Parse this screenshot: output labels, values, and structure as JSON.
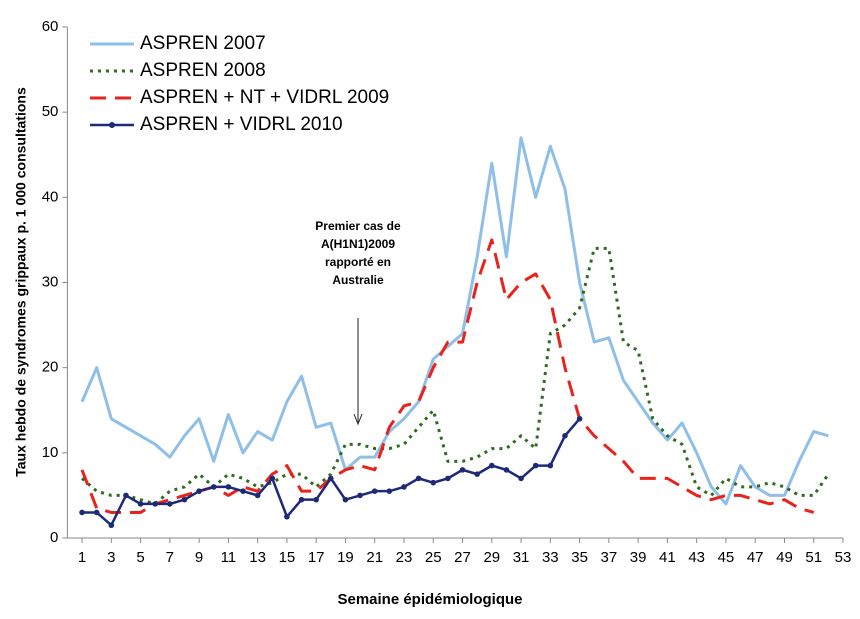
{
  "chart_data": {
    "type": "line",
    "x_label": "Semaine épidémiologique",
    "y_label": "Taux hebdo de syndromes grippaux p. 1 000 consultations",
    "annotation": [
      "Premier cas de",
      "A(H1N1)2009",
      "rapporté en",
      "Australie"
    ],
    "x": [
      1,
      2,
      3,
      4,
      5,
      6,
      7,
      8,
      9,
      10,
      11,
      12,
      13,
      14,
      15,
      16,
      17,
      18,
      19,
      20,
      21,
      22,
      23,
      24,
      25,
      26,
      27,
      28,
      29,
      30,
      31,
      32,
      33,
      34,
      35,
      36,
      37,
      38,
      39,
      40,
      41,
      42,
      43,
      44,
      45,
      46,
      47,
      48,
      49,
      50,
      51,
      52
    ],
    "xlim": [
      0,
      53
    ],
    "xticks": [
      1,
      3,
      5,
      7,
      9,
      11,
      13,
      15,
      17,
      19,
      21,
      23,
      25,
      27,
      29,
      31,
      33,
      35,
      37,
      39,
      41,
      43,
      45,
      47,
      49,
      51,
      53
    ],
    "ylim": [
      0,
      60
    ],
    "yticks": [
      0,
      10,
      20,
      30,
      40,
      50,
      60
    ],
    "legend": "upper left",
    "series": [
      {
        "name": "ASPREN 2007",
        "color": "#8fbfe8",
        "style": "solid",
        "values": [
          16,
          20,
          14,
          13,
          12,
          11,
          9.5,
          12,
          14,
          9,
          14.5,
          10,
          12.5,
          11.5,
          16,
          19,
          13,
          13.5,
          8,
          9.5,
          9.5,
          12.5,
          14,
          16,
          21,
          22.5,
          24,
          33,
          44,
          33,
          47,
          40,
          46,
          41,
          30,
          23,
          23.5,
          18.5,
          16,
          13.5,
          11.5,
          13.5,
          10,
          6,
          4,
          8.5,
          6,
          5,
          5,
          9,
          12.5,
          12
        ]
      },
      {
        "name": "ASPREN 2008",
        "color": "#2e6b1f",
        "style": "dotted",
        "values": [
          7,
          5.5,
          5,
          5,
          4.5,
          4,
          5.5,
          6,
          7.5,
          6,
          7.5,
          7,
          6,
          6.5,
          7.5,
          7.5,
          6,
          7.5,
          11,
          11,
          10.5,
          10.5,
          11,
          13,
          15,
          9,
          9,
          9.5,
          10.5,
          10.5,
          12,
          10.5,
          24,
          25,
          27,
          34,
          34,
          23,
          22,
          14,
          12,
          11,
          6,
          5,
          7,
          6,
          6,
          6.5,
          6,
          5,
          5,
          7.5
        ]
      },
      {
        "name": "ASPREN + NT + VIDRL 2009",
        "color": "#e8231c",
        "style": "dashed",
        "values": [
          8,
          3.5,
          3,
          3,
          3,
          4,
          4.5,
          5,
          5.5,
          6,
          5,
          6,
          5.5,
          7.5,
          8.5,
          5.5,
          5.5,
          7,
          8,
          8.5,
          8,
          13,
          15.5,
          16,
          20,
          23,
          23,
          30,
          35,
          28,
          30,
          31,
          28,
          20,
          14,
          12,
          10.5,
          9,
          7,
          7,
          7,
          6,
          5,
          4.5,
          5,
          5,
          4.5,
          4,
          4.5,
          3.5,
          3,
          null
        ]
      },
      {
        "name": "ASPREN + VIDRL 2010",
        "color": "#1c2a78",
        "style": "marker",
        "values": [
          3,
          3,
          1.5,
          5,
          4,
          4,
          4,
          4.5,
          5.5,
          6,
          6,
          5.5,
          5,
          7,
          2.5,
          4.5,
          4.5,
          7,
          4.5,
          5,
          5.5,
          5.5,
          6,
          7,
          6.5,
          7,
          8,
          7.5,
          8.5,
          8,
          7,
          8.5,
          8.5,
          12,
          14,
          null,
          null,
          null,
          null,
          null,
          null,
          null,
          null,
          null,
          null,
          null,
          null,
          null,
          null,
          null,
          null,
          null
        ]
      }
    ]
  }
}
